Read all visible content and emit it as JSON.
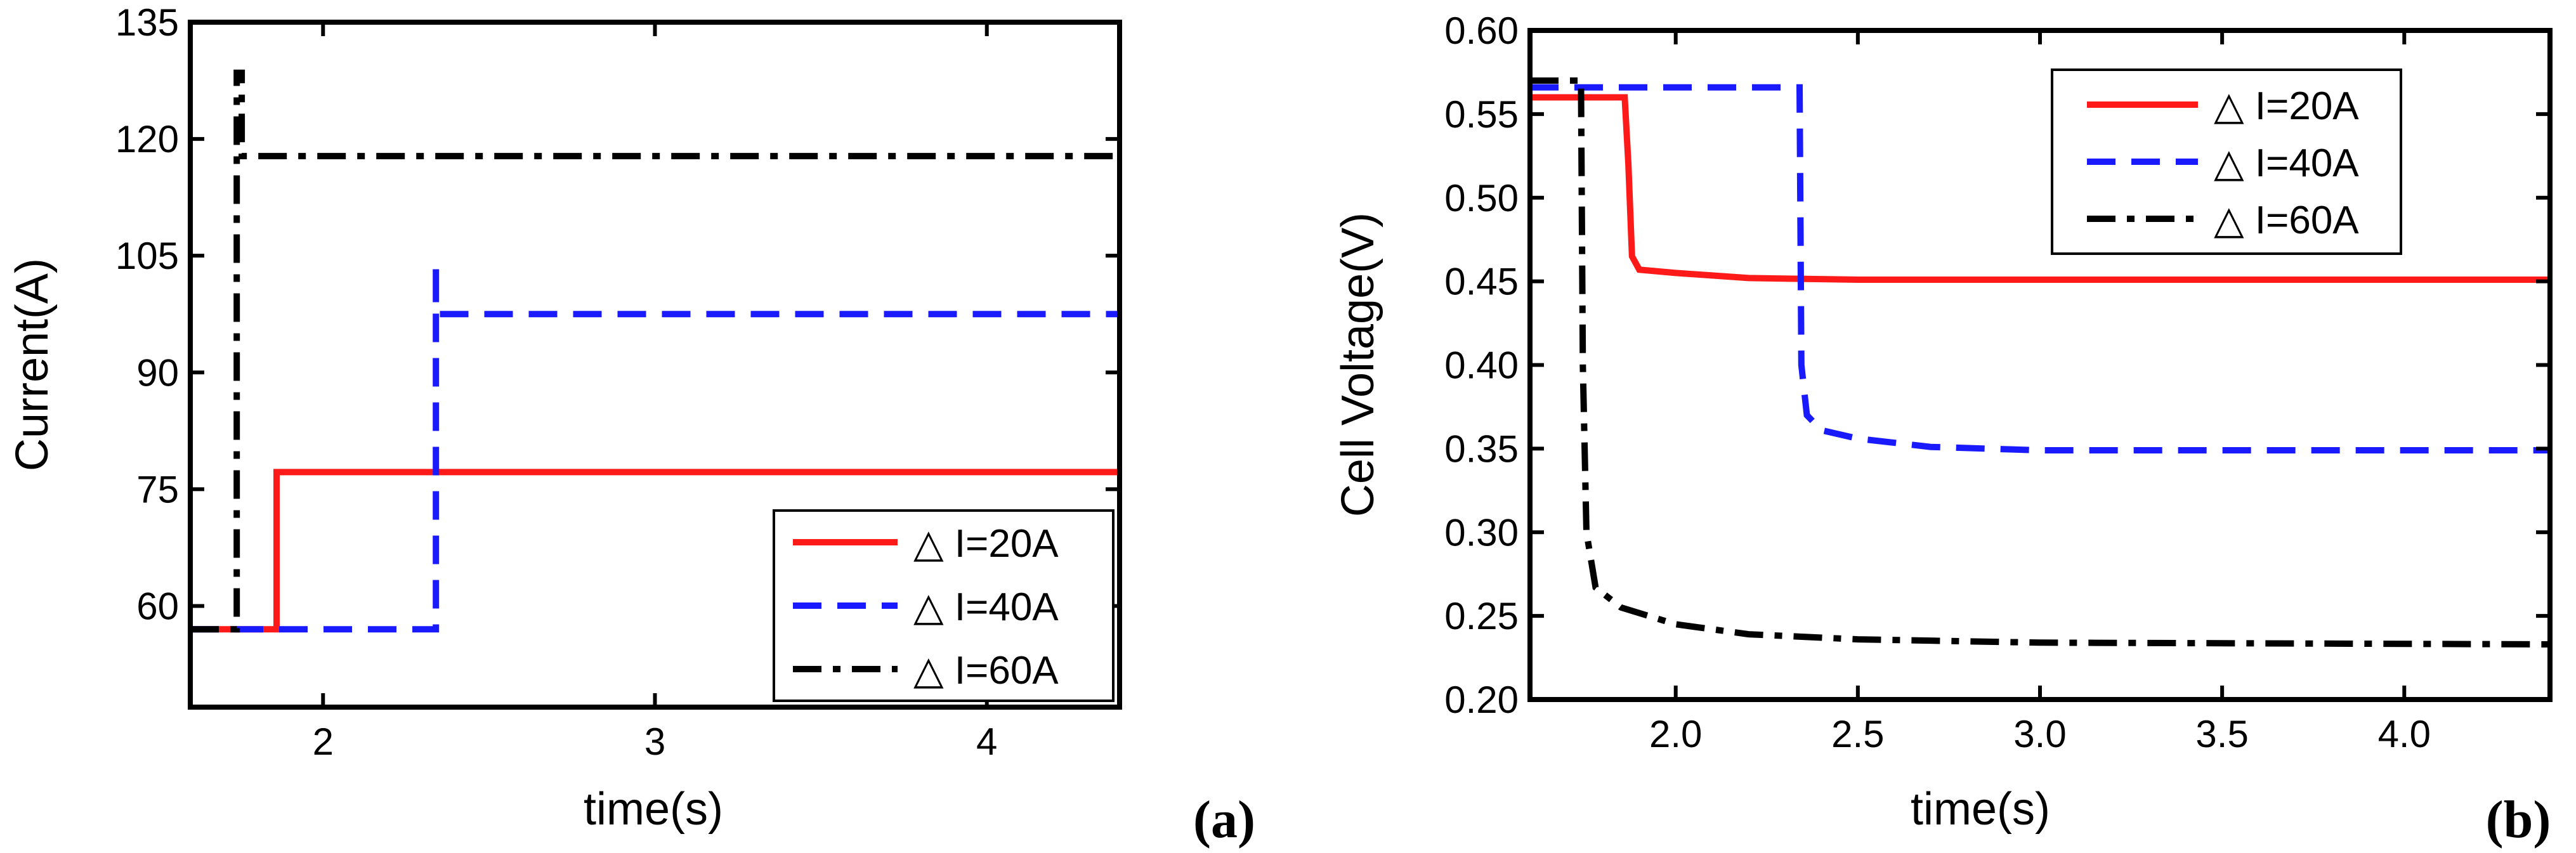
{
  "chart_data": [
    {
      "type": "line",
      "panel_label": "(a)",
      "xlabel": "time(s)",
      "ylabel": "Current(A)",
      "xlim": [
        1.6,
        4.4
      ],
      "ylim": [
        47,
        135
      ],
      "xticks": [
        2,
        3,
        4
      ],
      "xtick_labels": [
        "2",
        "3",
        "4"
      ],
      "yticks": [
        60,
        75,
        90,
        105,
        120,
        135
      ],
      "ytick_labels": [
        "60",
        "75",
        "90",
        "105",
        "120",
        "135"
      ],
      "grid": false,
      "legend_position": "bottom-right",
      "series": [
        {
          "name": "△ I=20A",
          "color": "#ff1a1a",
          "style": "solid",
          "x": [
            1.6,
            1.86,
            1.86,
            4.4
          ],
          "y": [
            57,
            57,
            77.2,
            77.2
          ]
        },
        {
          "name": "△ I=40A",
          "color": "#1a1aff",
          "style": "dash",
          "x": [
            1.6,
            2.34,
            2.34,
            2.34,
            4.4
          ],
          "y": [
            57,
            57,
            104,
            97.5,
            97.5
          ]
        },
        {
          "name": "△ I=60A",
          "color": "#000000",
          "style": "dashdot",
          "x": [
            1.6,
            1.74,
            1.74,
            1.755,
            1.755,
            4.4
          ],
          "y": [
            57,
            57,
            128.5,
            128.5,
            117.8,
            117.8
          ]
        }
      ]
    },
    {
      "type": "line",
      "panel_label": "(b)",
      "xlabel": "time(s)",
      "ylabel": "Cell Voltage(V)",
      "xlim": [
        1.6,
        4.4
      ],
      "ylim": [
        0.2,
        0.6
      ],
      "xticks": [
        2.0,
        2.5,
        3.0,
        3.5,
        4.0
      ],
      "xtick_labels": [
        "2.0",
        "2.5",
        "3.0",
        "3.5",
        "4.0"
      ],
      "yticks": [
        0.2,
        0.25,
        0.3,
        0.35,
        0.4,
        0.45,
        0.5,
        0.55,
        0.6
      ],
      "ytick_labels": [
        "0.20",
        "0.25",
        "0.30",
        "0.35",
        "0.40",
        "0.45",
        "0.50",
        "0.55",
        "0.60"
      ],
      "grid": false,
      "legend_position": "top-right",
      "series": [
        {
          "name": "△ I=20A",
          "color": "#ff1a1a",
          "style": "solid",
          "x": [
            1.6,
            1.86,
            1.87,
            1.88,
            1.9,
            2.0,
            2.2,
            2.5,
            3.0,
            4.4
          ],
          "y": [
            0.56,
            0.56,
            0.52,
            0.465,
            0.457,
            0.455,
            0.452,
            0.451,
            0.451,
            0.451
          ]
        },
        {
          "name": "△ I=40A",
          "color": "#1a1aff",
          "style": "dash",
          "x": [
            1.6,
            2.34,
            2.345,
            2.36,
            2.4,
            2.5,
            2.7,
            3.0,
            3.5,
            4.4
          ],
          "y": [
            0.566,
            0.566,
            0.4,
            0.37,
            0.361,
            0.356,
            0.351,
            0.349,
            0.349,
            0.349
          ]
        },
        {
          "name": "△ I=60A",
          "color": "#000000",
          "style": "dashdot",
          "x": [
            1.6,
            1.74,
            1.745,
            1.755,
            1.78,
            1.85,
            2.0,
            2.2,
            2.5,
            3.0,
            4.4
          ],
          "y": [
            0.57,
            0.57,
            0.4,
            0.3,
            0.267,
            0.255,
            0.245,
            0.239,
            0.236,
            0.234,
            0.233
          ]
        }
      ]
    }
  ]
}
